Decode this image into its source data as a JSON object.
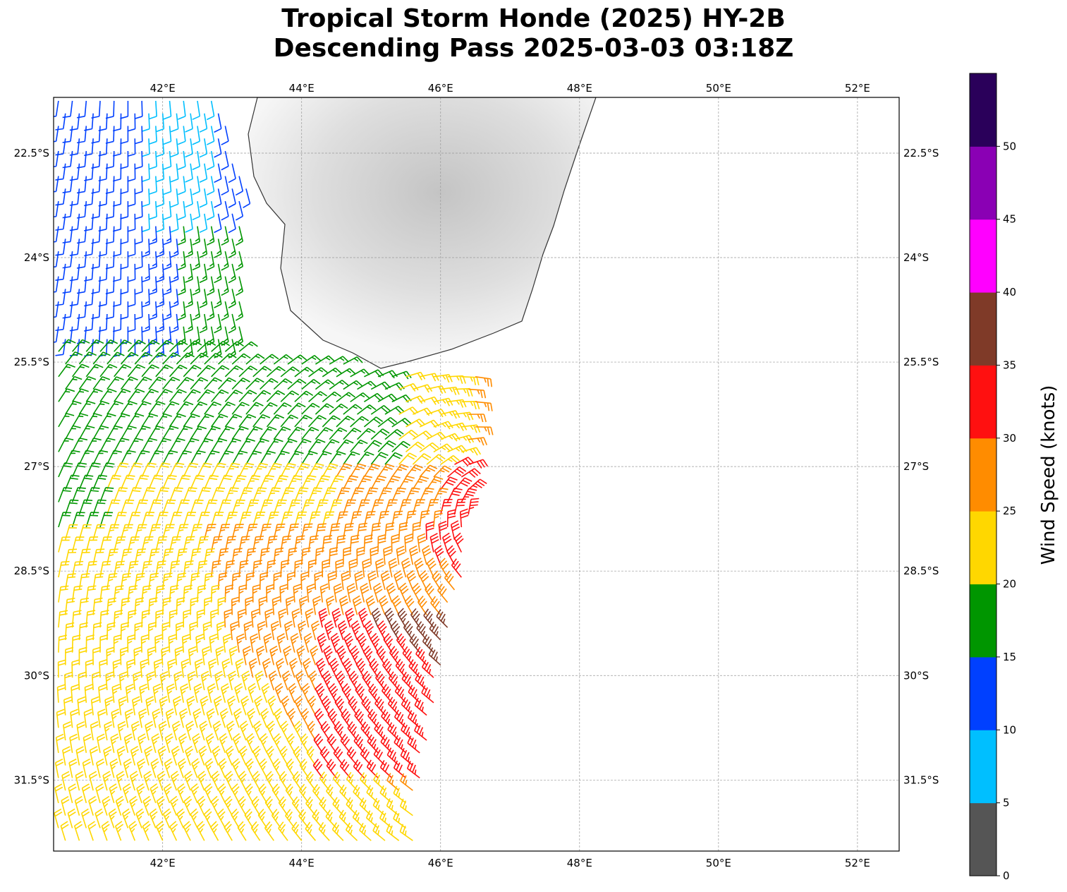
{
  "title_line1": "Tropical Storm Honde (2025) HY-2B",
  "title_line2": "Descending Pass 2025-03-03 03:18Z",
  "chart_data": {
    "type": "barbs",
    "title": "Tropical Storm Honde (2025) HY-2B Descending Pass 2025-03-03 03:18Z",
    "lon_range": [
      40.43,
      52.6
    ],
    "lat_range": [
      -32.52,
      -21.7
    ],
    "lon_ticks": [
      42,
      44,
      46,
      48,
      50,
      52
    ],
    "lon_tick_labels": [
      "42°E",
      "44°E",
      "46°E",
      "48°E",
      "50°E",
      "52°E"
    ],
    "lat_ticks": [
      -22.5,
      -24,
      -25.5,
      -27,
      -28.5,
      -30,
      -31.5
    ],
    "lat_tick_labels": [
      "22.5°S",
      "24°S",
      "25.5°S",
      "27°S",
      "28.5°S",
      "30°S",
      "31.5°S"
    ],
    "grid": true,
    "colorbar": {
      "label": "Wind Speed (knots)",
      "ticks": [
        0,
        5,
        10,
        15,
        20,
        25,
        30,
        35,
        40,
        45,
        50
      ],
      "tick_labels": [
        "0",
        "5",
        "10",
        "15",
        "20",
        "25",
        "30",
        "35",
        "40",
        "45",
        "50"
      ],
      "bounds": [
        0,
        5,
        10,
        15,
        20,
        25,
        30,
        35,
        40,
        45,
        50,
        55
      ],
      "colors": [
        "#555555",
        "#00bfff",
        "#0040ff",
        "#009600",
        "#ffd700",
        "#ff8c00",
        "#ff1010",
        "#7f3a28",
        "#ff00ff",
        "#8a00b4",
        "#2a005a"
      ]
    },
    "max_wind_kt_approx": 35,
    "max_wind_location_approx": {
      "lon": 46.2,
      "lat": -27.9
    }
  }
}
